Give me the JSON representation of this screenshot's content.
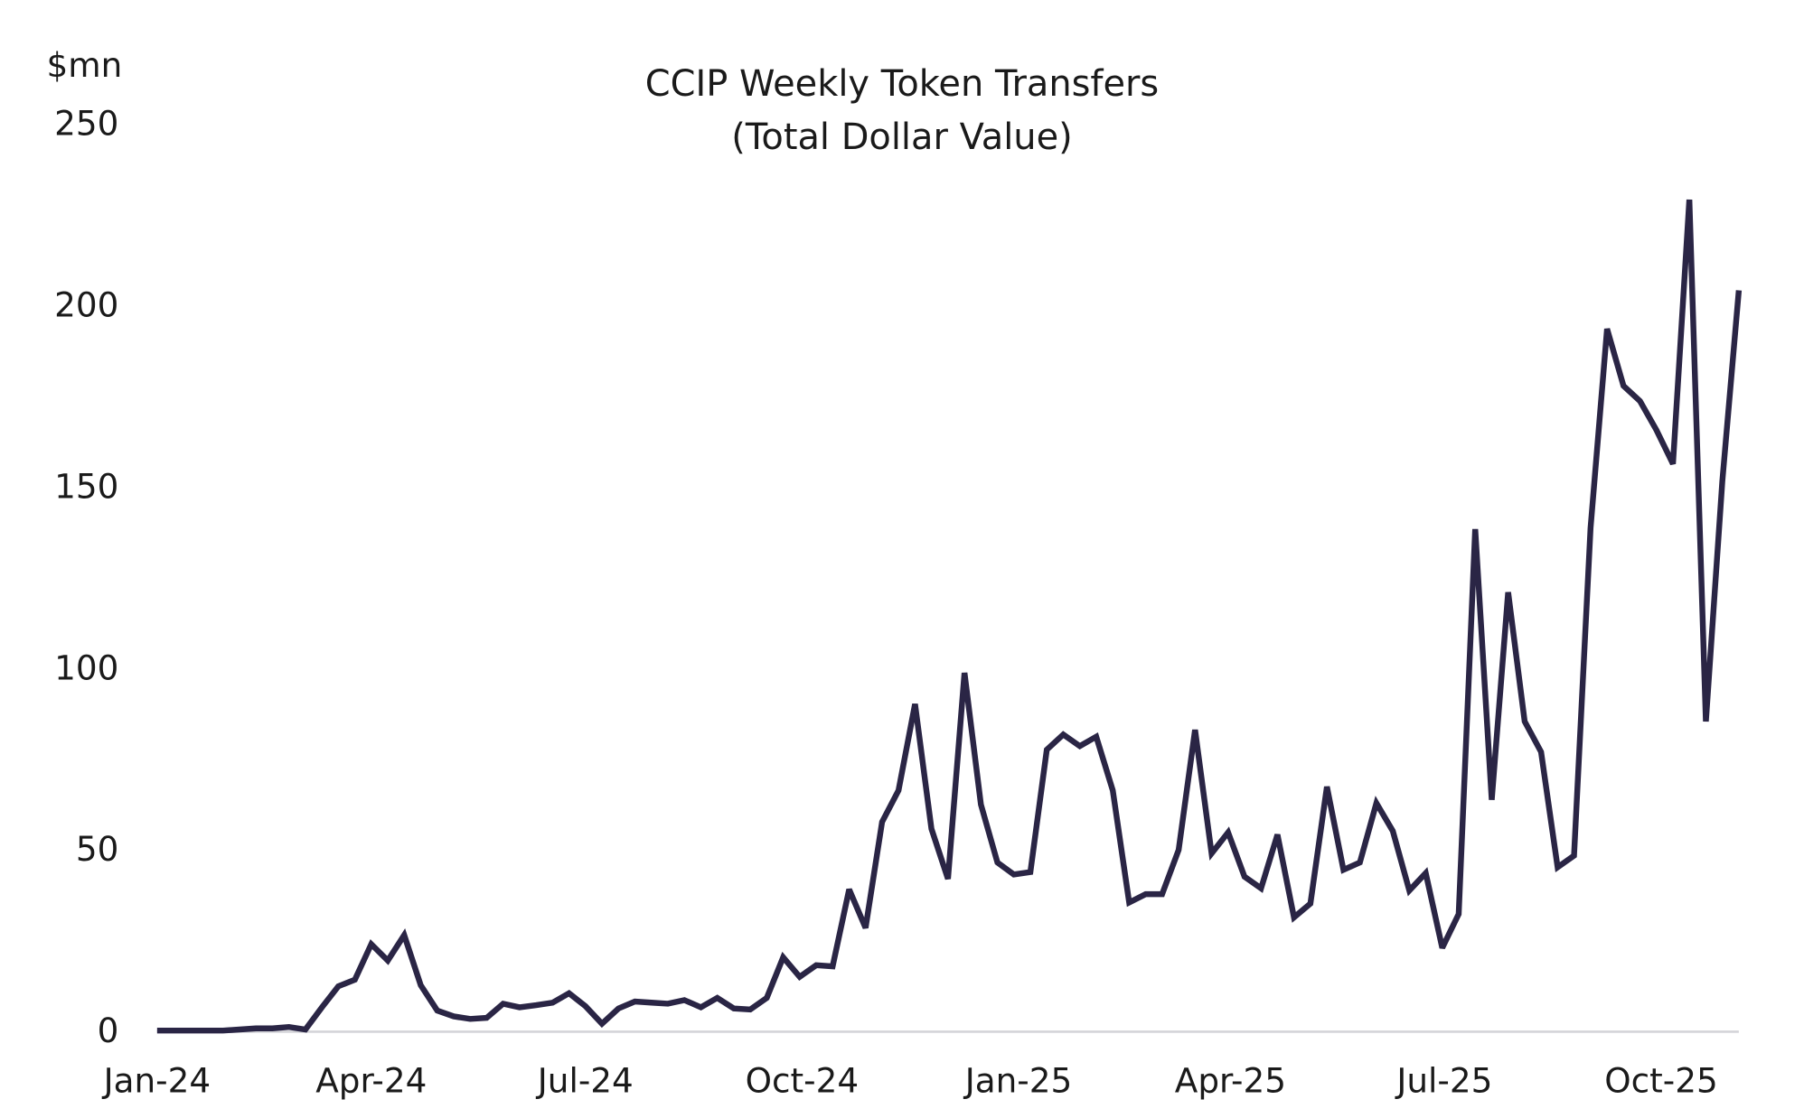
{
  "chart_data": {
    "type": "line",
    "title": [
      "CCIP Weekly Token Transfers",
      "(Total Dollar Value)"
    ],
    "ylabel": "$mn",
    "xlabel": "",
    "ylim": [
      0,
      250
    ],
    "yticks": [
      "0",
      "50",
      "100",
      "150",
      "200",
      "250"
    ],
    "xlim": [
      "2024-01-01",
      "2025-11-03"
    ],
    "xticks": [
      {
        "label": "Jan-24",
        "date": "2024-01-01"
      },
      {
        "label": "Apr-24",
        "date": "2024-04-01"
      },
      {
        "label": "Jul-24",
        "date": "2024-07-01"
      },
      {
        "label": "Oct-24",
        "date": "2024-10-01"
      },
      {
        "label": "Jan-25",
        "date": "2025-01-01"
      },
      {
        "label": "Apr-25",
        "date": "2025-04-01"
      },
      {
        "label": "Jul-25",
        "date": "2025-07-01"
      },
      {
        "label": "Oct-25",
        "date": "2025-10-01"
      }
    ],
    "grid": false,
    "line_color": "#2a2545",
    "x": [
      "2024-01-01",
      "2024-01-08",
      "2024-01-15",
      "2024-01-22",
      "2024-01-29",
      "2024-02-05",
      "2024-02-12",
      "2024-02-19",
      "2024-02-26",
      "2024-03-04",
      "2024-03-11",
      "2024-03-18",
      "2024-03-25",
      "2024-04-01",
      "2024-04-08",
      "2024-04-15",
      "2024-04-22",
      "2024-04-29",
      "2024-05-06",
      "2024-05-13",
      "2024-05-20",
      "2024-05-27",
      "2024-06-03",
      "2024-06-10",
      "2024-06-17",
      "2024-06-24",
      "2024-07-01",
      "2024-07-08",
      "2024-07-15",
      "2024-07-22",
      "2024-07-29",
      "2024-08-05",
      "2024-08-12",
      "2024-08-19",
      "2024-08-26",
      "2024-09-02",
      "2024-09-09",
      "2024-09-16",
      "2024-09-23",
      "2024-09-30",
      "2024-10-07",
      "2024-10-14",
      "2024-10-21",
      "2024-10-28",
      "2024-11-04",
      "2024-11-11",
      "2024-11-18",
      "2024-11-25",
      "2024-12-02",
      "2024-12-09",
      "2024-12-16",
      "2024-12-23",
      "2024-12-30",
      "2025-01-06",
      "2025-01-13",
      "2025-01-20",
      "2025-01-27",
      "2025-02-03",
      "2025-02-10",
      "2025-02-17",
      "2025-02-24",
      "2025-03-03",
      "2025-03-10",
      "2025-03-17",
      "2025-03-24",
      "2025-03-31",
      "2025-04-07",
      "2025-04-14",
      "2025-04-21",
      "2025-04-28",
      "2025-05-05",
      "2025-05-12",
      "2025-05-19",
      "2025-05-26",
      "2025-06-02",
      "2025-06-09",
      "2025-06-16",
      "2025-06-23",
      "2025-06-30",
      "2025-07-07",
      "2025-07-14",
      "2025-07-21",
      "2025-07-28",
      "2025-08-04",
      "2025-08-11",
      "2025-08-18",
      "2025-08-25",
      "2025-09-01",
      "2025-09-08",
      "2025-09-15",
      "2025-09-22",
      "2025-09-29",
      "2025-10-06",
      "2025-10-13",
      "2025-10-20",
      "2025-10-27",
      "2025-11-03"
    ],
    "series": [
      {
        "values": [
          0,
          0,
          0,
          0,
          0,
          0.3,
          0.6,
          0.6,
          1,
          0.3,
          6.4,
          12.2,
          14,
          23.8,
          19.3,
          26.3,
          12.5,
          5.5,
          3.9,
          3.2,
          3.5,
          7.4,
          6.4,
          7,
          7.7,
          10.3,
          6.7,
          1.9,
          6.1,
          8,
          7.7,
          7.4,
          8.4,
          6.4,
          9,
          6.1,
          5.8,
          9,
          20.2,
          14.8,
          18,
          17.7,
          38.9,
          28.3,
          57.5,
          66.2,
          90,
          55.6,
          41.8,
          98.6,
          62.3,
          46.3,
          43,
          43.7,
          77.4,
          81.6,
          78.4,
          81,
          66.2,
          35.3,
          37.6,
          37.6,
          49.8,
          82.9,
          48.8,
          54.6,
          42.4,
          39.2,
          54,
          31.2,
          35,
          67.2,
          44.3,
          46.3,
          62.7,
          55,
          38.6,
          43.4,
          22.8,
          32.1,
          138.2,
          63.6,
          120.8,
          85.2,
          76.8,
          45,
          48.2,
          138.5,
          193.4,
          177.7,
          173.5,
          165.5,
          156.2,
          229,
          85.2,
          151.3,
          204
        ]
      }
    ]
  }
}
